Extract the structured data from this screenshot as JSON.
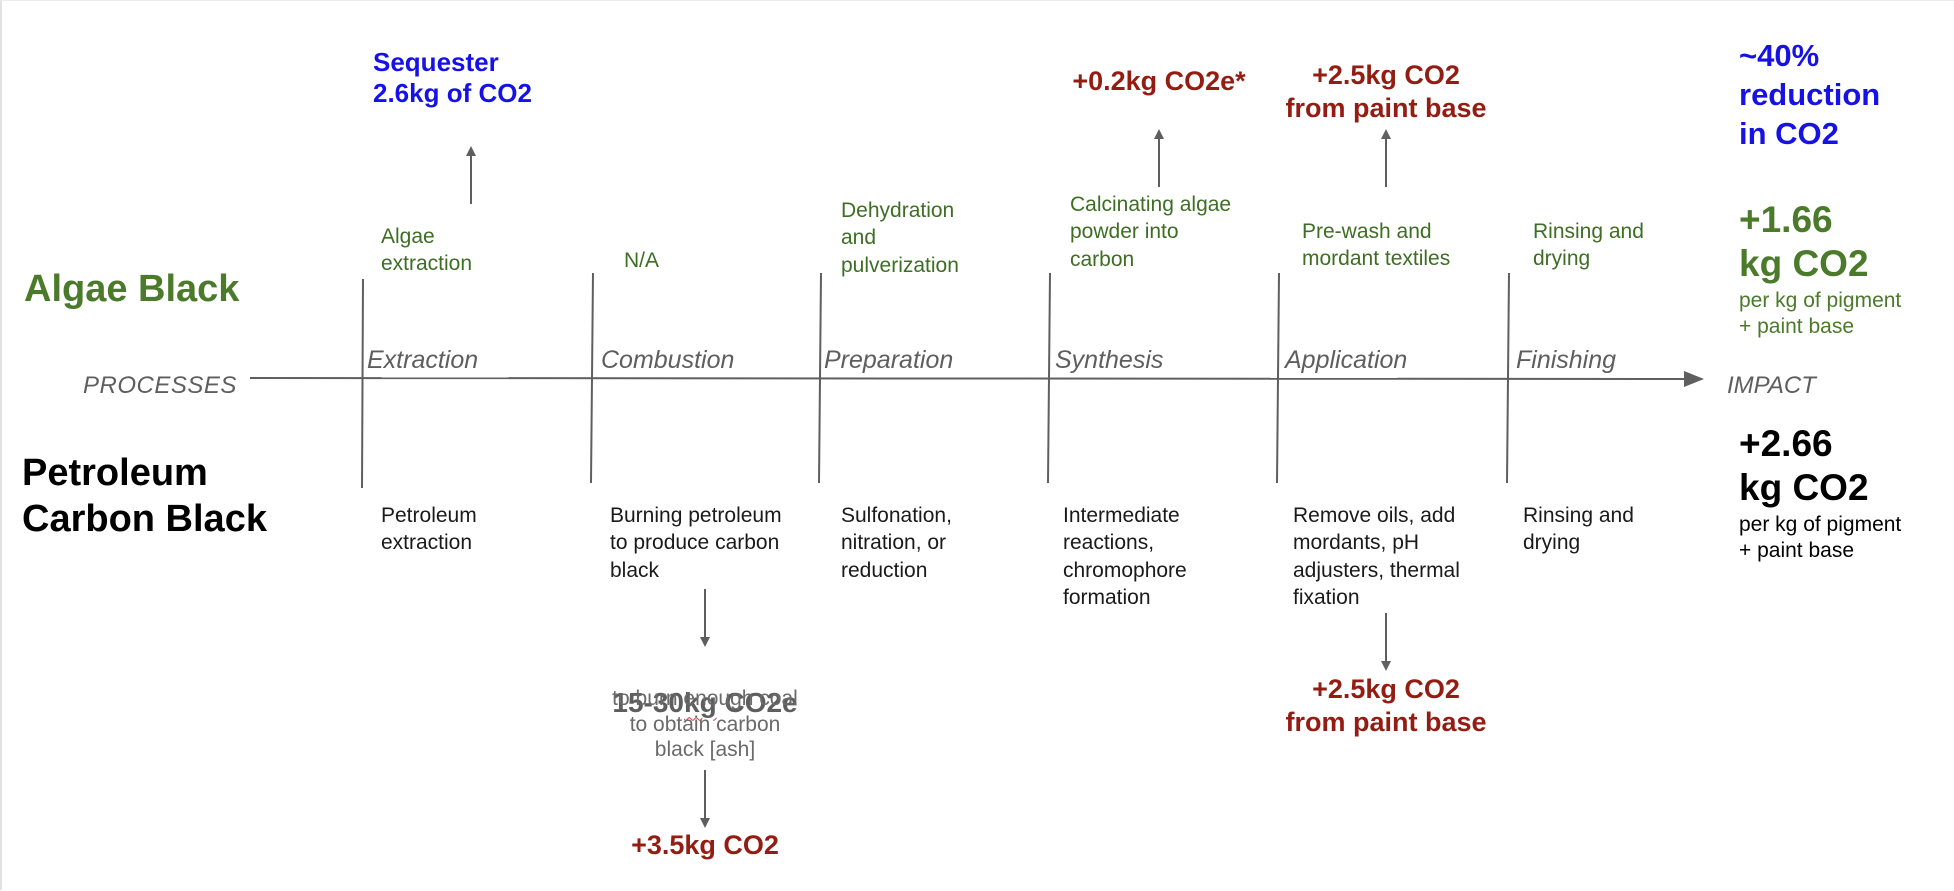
{
  "rows": {
    "algae_label": "Algae Black",
    "petroleum_label": "Petroleum\nCarbon Black"
  },
  "axis": {
    "start_label": "PROCESSES",
    "end_label": "IMPACT"
  },
  "stages": [
    "Extraction",
    "Combustion",
    "Preparation",
    "Synthesis",
    "Application",
    "Finishing"
  ],
  "algae_steps": [
    "Algae\nextraction",
    "N/A",
    "Dehydration\nand\npulverization",
    "Calcinating algae\npowder into\ncarbon",
    "Pre-wash and\nmordant textiles",
    "Rinsing and\ndrying"
  ],
  "petroleum_steps": [
    "Petroleum\nextraction",
    "Burning petroleum\nto produce carbon\nblack",
    "Sulfonation,\nnitration, or\nreduction",
    "Intermediate\nreactions,\nchromophore\nformation",
    "Remove oils, add\nmordants, pH\nadjusters, thermal\nfixation",
    "Rinsing and\ndrying"
  ],
  "algae_effects": {
    "extraction": "Sequester\n2.6kg of CO2",
    "synthesis": "+0.2kg CO2e*",
    "application": "+2.5kg CO2\nfrom paint base"
  },
  "petroleum_effects": {
    "combustion_head_pre": "15-30",
    "combustion_head_squiggle": "kg",
    "combustion_head_post": " CO2e",
    "combustion_note": "to burn enough coal\nto obtain carbon\nblack [ash]",
    "combustion_result": "+3.5kg CO2",
    "application": "+2.5kg CO2\nfrom paint base"
  },
  "impact": {
    "reduction": "~40%\nreduction\nin CO2",
    "algae_value": "+1.66\nkg CO2",
    "algae_unit": "per kg of pigment\n+ paint base",
    "petroleum_value": "+2.66\nkg CO2",
    "petroleum_unit": "per kg of pigment\n+ paint base"
  },
  "colors": {
    "algae_green": "#3e6e23",
    "impact_green": "#4a7a2a",
    "emission_red": "#941d13",
    "sequester_blue": "#1612e6",
    "line_gray": "#5f5f5f"
  }
}
